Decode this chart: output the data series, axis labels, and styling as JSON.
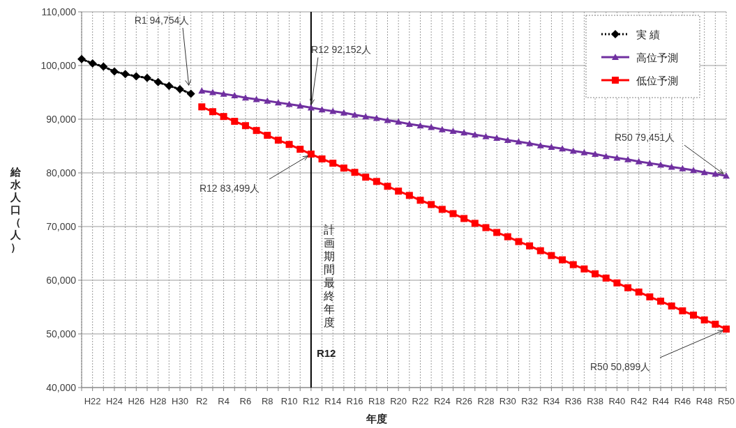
{
  "chart_data": {
    "type": "line",
    "xlabel": "年度",
    "ylabel": "給水人口（人）",
    "categories": [
      null,
      "H22",
      null,
      "H24",
      null,
      "H26",
      null,
      "H28",
      null,
      "H30",
      null,
      "R2",
      null,
      "R4",
      null,
      "R6",
      null,
      "R8",
      null,
      "R10",
      null,
      "R12",
      null,
      "R14",
      null,
      "R16",
      null,
      "R18",
      null,
      "R20",
      null,
      "R22",
      null,
      "R24",
      null,
      "R26",
      null,
      "R28",
      null,
      "R30",
      null,
      "R32",
      null,
      "R34",
      null,
      "R36",
      null,
      "R38",
      null,
      "R40",
      null,
      "R42",
      null,
      "R44",
      null,
      "R46",
      null,
      "R48",
      null,
      "R50"
    ],
    "series": [
      {
        "name": "実 績",
        "color": "#000000",
        "marker": "diamond",
        "line_style": "dotted",
        "values": [
          101200,
          100400,
          99800,
          98900,
          98400,
          98000,
          97700,
          96900,
          96200,
          95600,
          94754,
          null,
          null,
          null,
          null,
          null,
          null,
          null,
          null,
          null,
          null,
          null,
          null,
          null,
          null,
          null,
          null,
          null,
          null,
          null,
          null,
          null,
          null,
          null,
          null,
          null,
          null,
          null,
          null,
          null,
          null,
          null,
          null,
          null,
          null,
          null,
          null,
          null,
          null,
          null,
          null,
          null,
          null,
          null,
          null,
          null,
          null,
          null,
          null,
          null
        ]
      },
      {
        "name": "高位予測",
        "color": "#7030a0",
        "marker": "triangle",
        "line_style": "solid",
        "values": [
          null,
          null,
          null,
          null,
          null,
          null,
          null,
          null,
          null,
          null,
          null,
          95300,
          95000,
          94700,
          94400,
          94000,
          93700,
          93400,
          93100,
          92800,
          92500,
          92152,
          91800,
          91500,
          91200,
          90800,
          90500,
          90200,
          89800,
          89500,
          89100,
          88800,
          88500,
          88100,
          87800,
          87500,
          87100,
          86800,
          86500,
          86100,
          85800,
          85500,
          85100,
          84800,
          84500,
          84100,
          83800,
          83500,
          83100,
          82800,
          82500,
          82100,
          81800,
          81500,
          81100,
          80800,
          80500,
          80100,
          79800,
          79451
        ]
      },
      {
        "name": "低位予測",
        "color": "#ff0000",
        "marker": "square",
        "line_style": "solid",
        "values": [
          null,
          null,
          null,
          null,
          null,
          null,
          null,
          null,
          null,
          null,
          null,
          92300,
          91400,
          90500,
          89600,
          88800,
          87900,
          87000,
          86100,
          85300,
          84400,
          83499,
          82600,
          81800,
          80900,
          80100,
          79200,
          78400,
          77500,
          76600,
          75800,
          74900,
          74100,
          73200,
          72400,
          71500,
          70600,
          69800,
          68900,
          68100,
          67200,
          66400,
          65500,
          64600,
          63800,
          62900,
          62100,
          61200,
          60400,
          59500,
          58600,
          57800,
          56900,
          56100,
          55200,
          54300,
          53500,
          52600,
          51800,
          50899
        ]
      }
    ],
    "ylim": [
      40000,
      110000
    ],
    "yticks": [
      {
        "value": 40000,
        "label": "40,000"
      },
      {
        "value": 50000,
        "label": "50,000"
      },
      {
        "value": 60000,
        "label": "60,000"
      },
      {
        "value": 70000,
        "label": "70,000"
      },
      {
        "value": 80000,
        "label": "80,000"
      },
      {
        "value": 90000,
        "label": "90,000"
      },
      {
        "value": 100000,
        "label": "100,000"
      },
      {
        "value": 110000,
        "label": "110,000"
      }
    ],
    "ref_lines": [
      {
        "axis": "x",
        "value": "R12",
        "label": "計画期間最終年度",
        "color": "#000000",
        "line_style": "solid"
      }
    ],
    "annotations": [
      "R1  94,754人",
      {
        "text": "R12  92,152人",
        "x": "R12",
        "y": 92152
      },
      {
        "text": "R12  83,499人",
        "x": "R12",
        "y": 83499
      },
      {
        "text": "R50  79,451人",
        "x": "R50",
        "y": 79451
      },
      {
        "text": "R50  50,899人",
        "x": "R50",
        "y": 50899
      }
    ],
    "grid": true,
    "legend": "top right"
  }
}
